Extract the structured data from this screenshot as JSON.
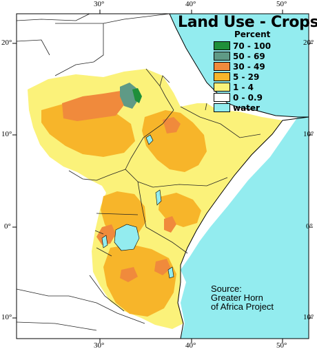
{
  "map": {
    "title": "Land Use - Crops",
    "legend": {
      "title": "Percent",
      "items": [
        {
          "label": "70 - 100",
          "color": "#1f8f3a"
        },
        {
          "label": "50 - 69",
          "color": "#5f9a86"
        },
        {
          "label": "30 - 49",
          "color": "#f08a3c"
        },
        {
          "label": "5 - 29",
          "color": "#f7b52a"
        },
        {
          "label": "1 - 4",
          "color": "#fbf27a"
        },
        {
          "label": "0 - 0.9",
          "color": "#ffffff"
        },
        {
          "label": "water",
          "color": "#93ecef"
        }
      ]
    },
    "source": [
      "Source:",
      "Greater Horn",
      "of Africa Project"
    ],
    "top_lon_labels": [
      "30°",
      "40°",
      "50°"
    ],
    "bottom_lon_labels": [
      "30°",
      "40°",
      "50°"
    ],
    "left_lat_labels": [
      "20°",
      "10°",
      "0°",
      "10°"
    ],
    "right_lat_labels": [
      "20°",
      "10°",
      "0°",
      "10°"
    ]
  }
}
